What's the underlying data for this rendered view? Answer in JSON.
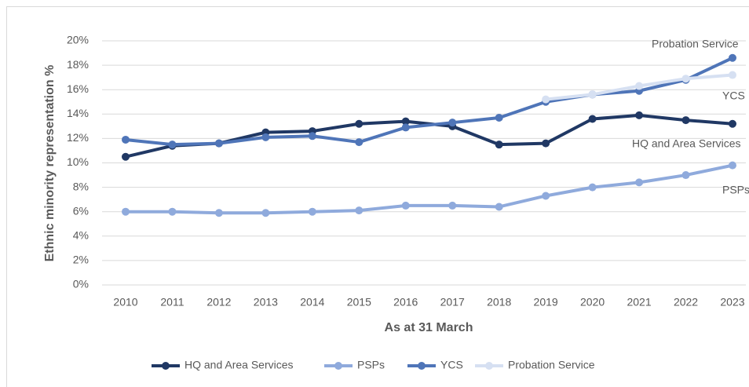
{
  "chart_data": {
    "type": "line",
    "y_label": "Ethnic minority representation %",
    "x_label": "As at 31 March",
    "categories": [
      "2010",
      "2011",
      "2012",
      "2013",
      "2014",
      "2015",
      "2016",
      "2017",
      "2018",
      "2019",
      "2020",
      "2021",
      "2022",
      "2023"
    ],
    "series": [
      {
        "name": "HQ and Area Services",
        "color": "#203864",
        "values": [
          10.5,
          11.4,
          11.6,
          12.5,
          12.6,
          13.2,
          13.4,
          13.0,
          11.5,
          11.6,
          13.6,
          13.9,
          13.5,
          13.2
        ]
      },
      {
        "name": "PSPs",
        "color": "#8faadc",
        "values": [
          6.0,
          6.0,
          5.9,
          5.9,
          6.0,
          6.1,
          6.5,
          6.5,
          6.4,
          7.3,
          8.0,
          8.4,
          9.0,
          9.8
        ]
      },
      {
        "name": "YCS",
        "color": "#4f75b8",
        "values": [
          11.9,
          11.5,
          11.6,
          12.1,
          12.2,
          11.7,
          12.9,
          13.3,
          13.7,
          15.0,
          15.6,
          15.9,
          16.8,
          18.6
        ]
      },
      {
        "name": "Probation Service",
        "color": "#d6e0f2",
        "values": [
          null,
          null,
          null,
          null,
          null,
          null,
          null,
          null,
          null,
          15.2,
          15.6,
          16.3,
          16.9,
          17.2
        ]
      }
    ],
    "annotations": [
      "Probation Service",
      "YCS",
      "HQ and Area Services",
      "PSPs"
    ],
    "ylim": [
      0,
      20
    ],
    "yticks": [
      {
        "value": 0,
        "label": "0%"
      },
      {
        "value": 2,
        "label": "2%"
      },
      {
        "value": 4,
        "label": "4%"
      },
      {
        "value": 6,
        "label": "6%"
      },
      {
        "value": 8,
        "label": "8%"
      },
      {
        "value": 10,
        "label": "10%"
      },
      {
        "value": 12,
        "label": "12%"
      },
      {
        "value": 14,
        "label": "14%"
      },
      {
        "value": 16,
        "label": "16%"
      },
      {
        "value": 18,
        "label": "18%"
      },
      {
        "value": 20,
        "label": "20%"
      }
    ],
    "grid": true,
    "legend": "bottom"
  }
}
